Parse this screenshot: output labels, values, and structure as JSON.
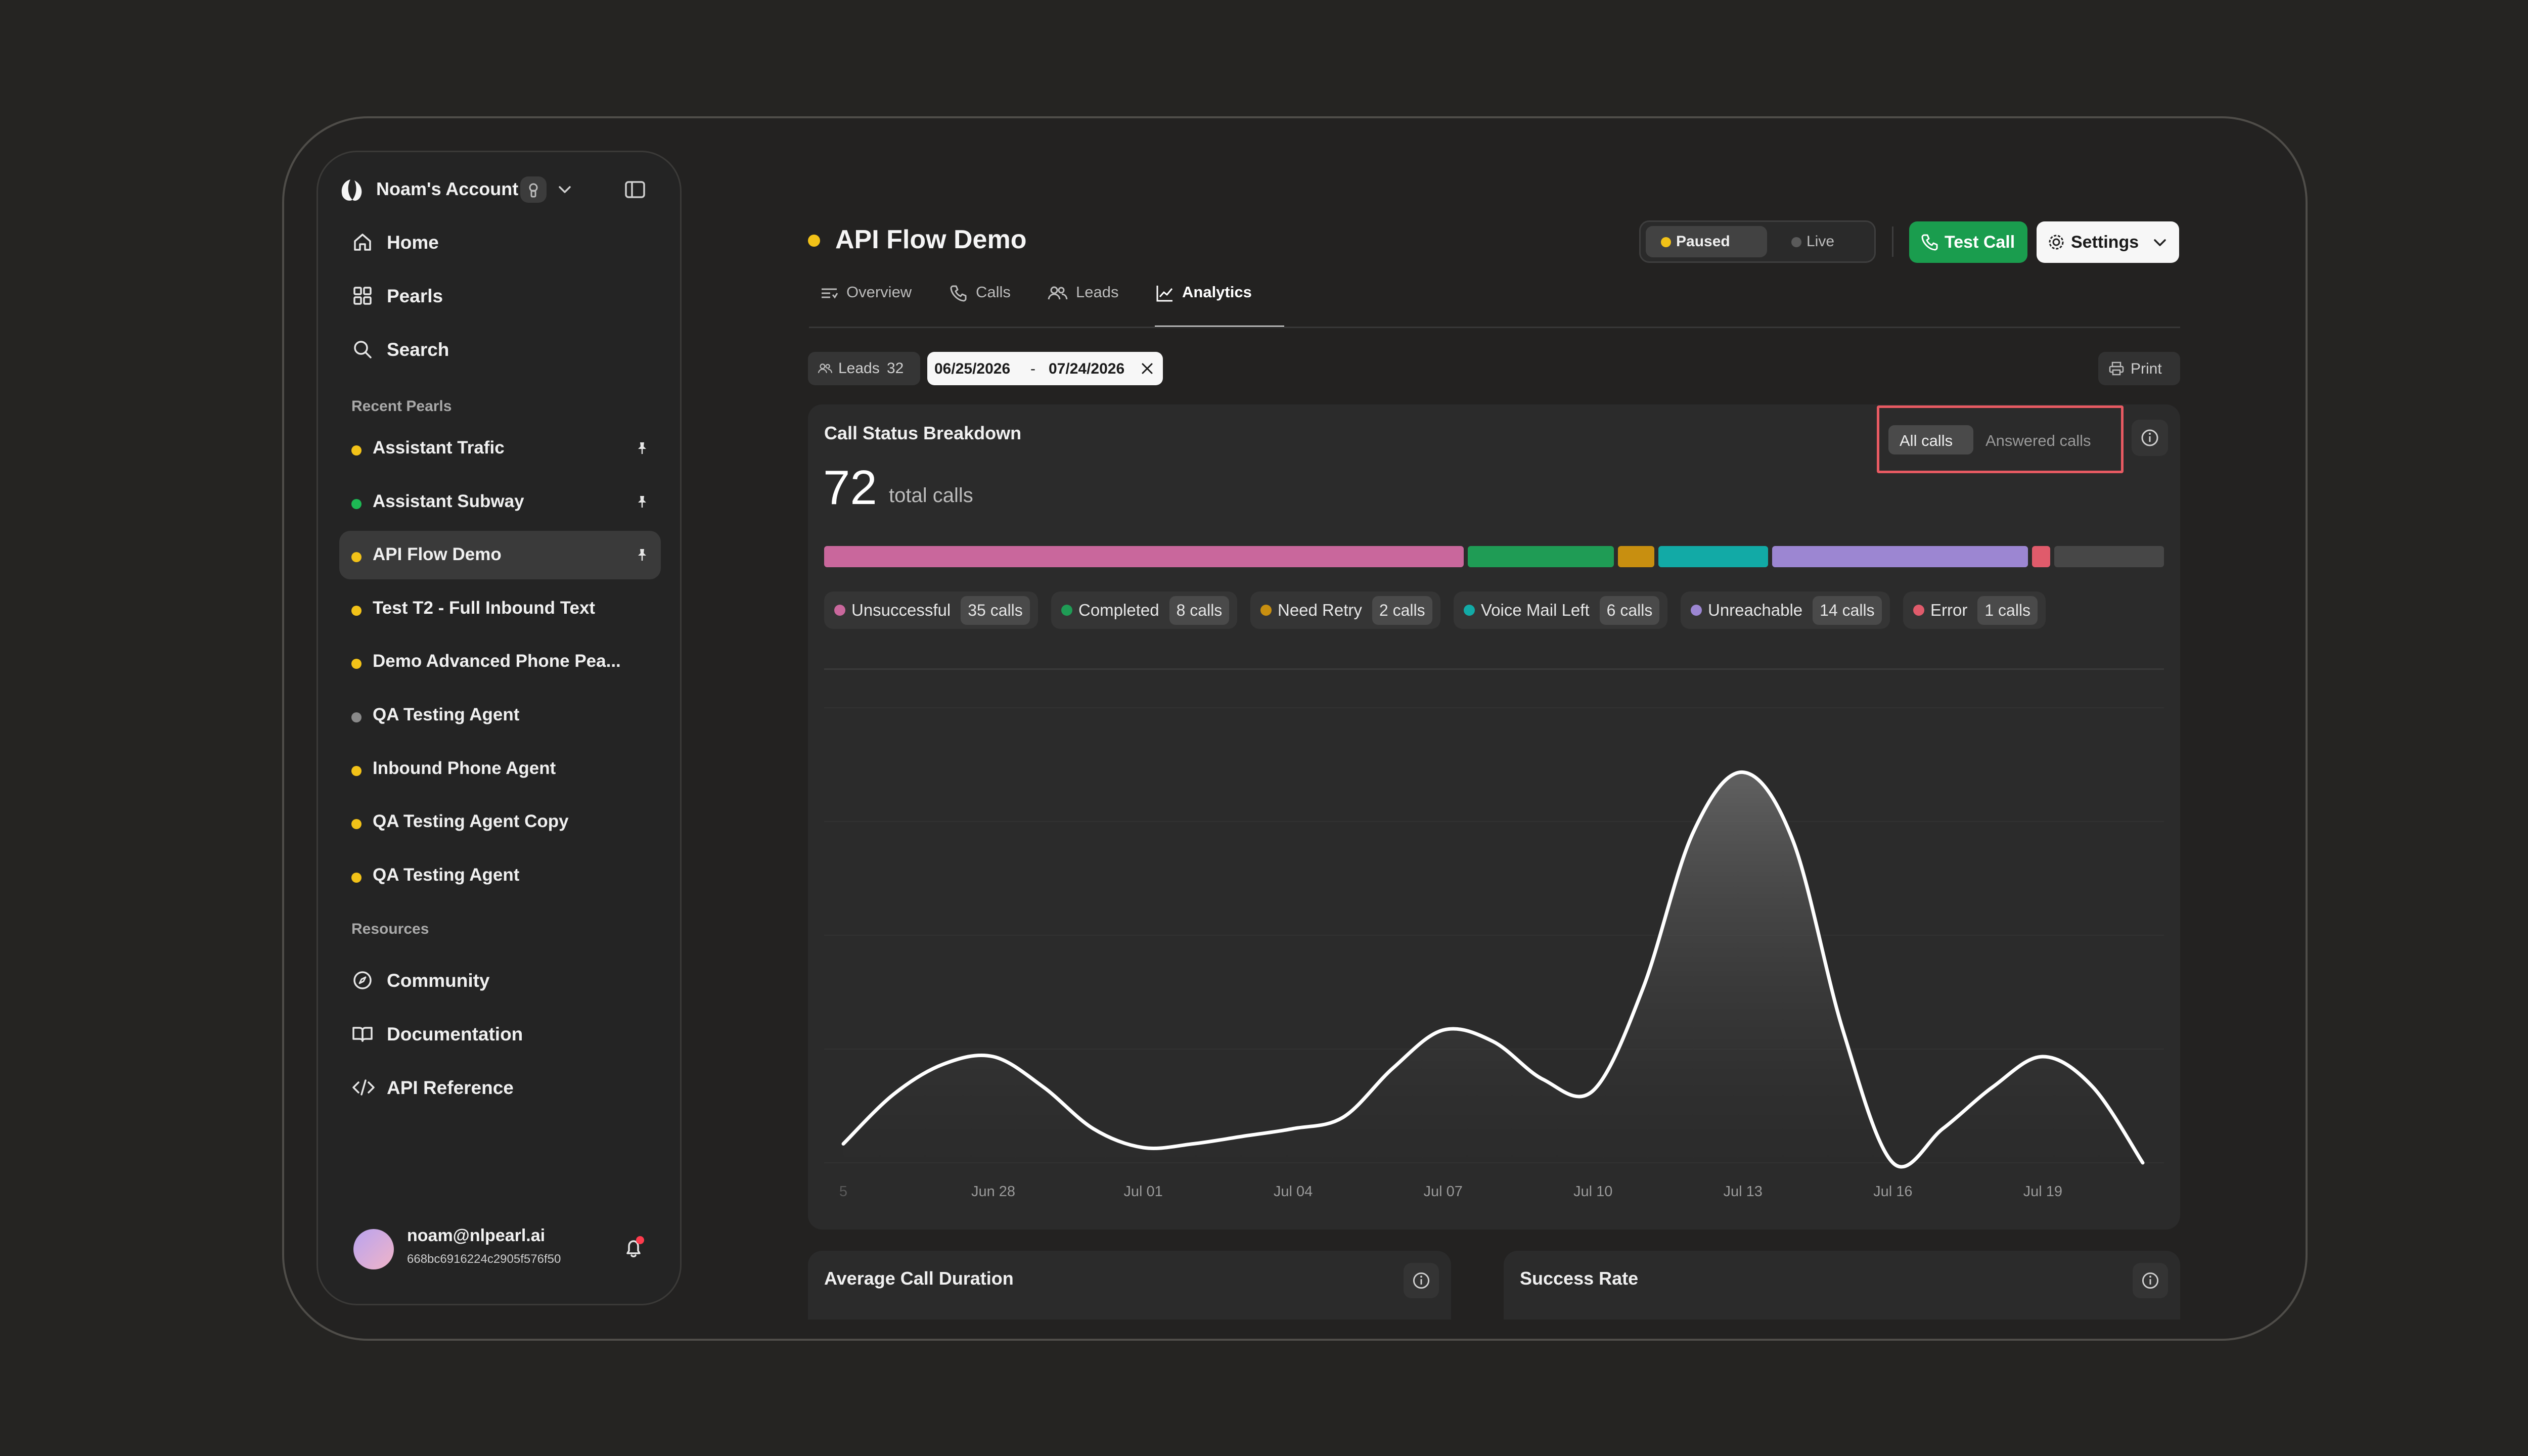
{
  "sidebar": {
    "account_name": "Noam's Account",
    "nav": [
      {
        "label": "Home",
        "icon": "home-icon"
      },
      {
        "label": "Pearls",
        "icon": "grid-icon"
      },
      {
        "label": "Search",
        "icon": "search-icon"
      }
    ],
    "recent_label": "Recent Pearls",
    "recent": [
      {
        "label": "Assistant Trafic",
        "dot": "#f2c218",
        "pinned": true,
        "active": false
      },
      {
        "label": "Assistant Subway",
        "dot": "#1db954",
        "pinned": true,
        "active": false
      },
      {
        "label": "API Flow Demo",
        "dot": "#f2c218",
        "pinned": true,
        "active": true
      },
      {
        "label": "Test T2 - Full Inbound Text",
        "dot": "#f2c218",
        "pinned": false,
        "active": false
      },
      {
        "label": "Demo Advanced Phone Pea...",
        "dot": "#f2c218",
        "pinned": false,
        "active": false
      },
      {
        "label": "QA Testing Agent",
        "dot": "#8a8a8a",
        "pinned": false,
        "active": false
      },
      {
        "label": "Inbound Phone Agent",
        "dot": "#f2c218",
        "pinned": false,
        "active": false
      },
      {
        "label": "QA Testing Agent Copy",
        "dot": "#f2c218",
        "pinned": false,
        "active": false
      },
      {
        "label": "QA Testing Agent",
        "dot": "#f2c218",
        "pinned": false,
        "active": false
      }
    ],
    "resources_label": "Resources",
    "resources": [
      {
        "label": "Community",
        "icon": "compass-icon"
      },
      {
        "label": "Documentation",
        "icon": "book-icon"
      },
      {
        "label": "API Reference",
        "icon": "code-icon"
      }
    ],
    "user": {
      "email": "noam@nlpearl.ai",
      "id": "668bc6916224c2905f576f50"
    }
  },
  "header": {
    "title": "API Flow Demo",
    "status_dot": "#f2c218",
    "paused_label": "Paused",
    "live_label": "Live",
    "test_call_label": "Test Call",
    "settings_label": "Settings",
    "tabs": [
      {
        "label": "Overview",
        "icon": "overview-icon"
      },
      {
        "label": "Calls",
        "icon": "phone-icon"
      },
      {
        "label": "Leads",
        "icon": "users-icon"
      },
      {
        "label": "Analytics",
        "icon": "chart-line-icon"
      }
    ],
    "active_tab": "Analytics"
  },
  "filters": {
    "leads_label": "Leads",
    "leads_count": "32",
    "date_start": "06/25/2026",
    "date_sep": "-",
    "date_end": "07/24/2026",
    "print_label": "Print"
  },
  "breakdown": {
    "title": "Call Status Breakdown",
    "total": "72",
    "total_label": "total calls",
    "toggle_all": "All calls",
    "toggle_answered": "Answered calls",
    "statuses": [
      {
        "label": "Unsuccessful",
        "count": "35 calls",
        "value": 35,
        "color": "#c9679c"
      },
      {
        "label": "Completed",
        "count": "8 calls",
        "value": 8,
        "color": "#1f9c55"
      },
      {
        "label": "Need Retry",
        "count": "2 calls",
        "value": 2,
        "color": "#c88f10"
      },
      {
        "label": "Voice Mail Left",
        "count": "6 calls",
        "value": 6,
        "color": "#12aaa6"
      },
      {
        "label": "Unreachable",
        "count": "14 calls",
        "value": 14,
        "color": "#9c86d2"
      },
      {
        "label": "Error",
        "count": "1 calls",
        "value": 1,
        "color": "#e05b6b"
      }
    ],
    "remainder": {
      "value": 6,
      "color": "#474747"
    }
  },
  "chart_data": {
    "type": "area",
    "x": [
      "Jun 25",
      "Jun 26",
      "Jun 27",
      "Jun 28",
      "Jun 29",
      "Jun 30",
      "Jul 01",
      "Jul 02",
      "Jul 03",
      "Jul 04",
      "Jul 05",
      "Jul 06",
      "Jul 07",
      "Jul 08",
      "Jul 09",
      "Jul 10",
      "Jul 11",
      "Jul 12",
      "Jul 13",
      "Jul 14",
      "Jul 15",
      "Jul 16",
      "Jul 17",
      "Jul 18",
      "Jul 19",
      "Jul 20",
      "Jul 21"
    ],
    "values": [
      0.5,
      1.8,
      2.6,
      2.8,
      2.0,
      0.9,
      0.4,
      0.5,
      0.7,
      0.9,
      1.2,
      2.5,
      3.5,
      3.2,
      2.2,
      1.9,
      4.6,
      8.7,
      10.3,
      8.5,
      3.5,
      0.0,
      0.9,
      2.0,
      2.8,
      2.0,
      0.0
    ],
    "x_ticks": [
      "Jun 28",
      "Jul 01",
      "Jul 04",
      "Jul 07",
      "Jul 10",
      "Jul 13",
      "Jul 16",
      "Jul 19"
    ],
    "x_tick_indices": [
      3,
      6,
      9,
      12,
      15,
      18,
      21,
      24
    ],
    "x_edge_label": "5",
    "ylim": [
      0,
      12
    ],
    "grid": true,
    "line_color": "#ffffff",
    "title": "",
    "xlabel": "",
    "ylabel": ""
  },
  "bottom_cards": [
    {
      "title": "Average Call Duration"
    },
    {
      "title": "Success Rate"
    }
  ]
}
